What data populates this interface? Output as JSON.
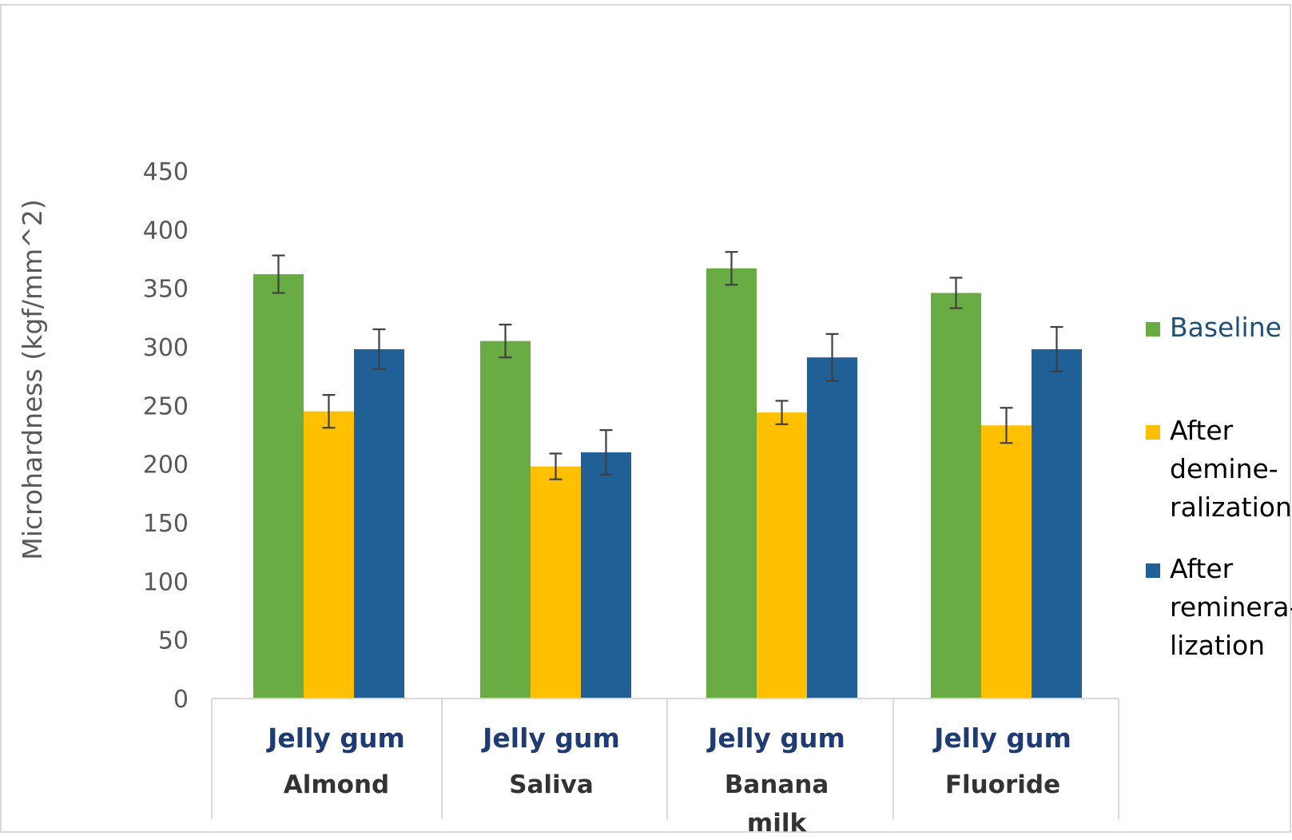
{
  "chart_data": {
    "type": "bar",
    "title": "",
    "xlabel": "",
    "ylabel": "Microhardness (kgf/mm^2)",
    "ylim": [
      0,
      450
    ],
    "yticks": [
      0,
      50,
      100,
      150,
      200,
      250,
      300,
      350,
      400,
      450
    ],
    "grid": false,
    "legend_position": "right",
    "categories": [
      {
        "group": "Jelly gum",
        "lines": [
          "Almond"
        ]
      },
      {
        "group": "Jelly gum",
        "lines": [
          "Saliva"
        ]
      },
      {
        "group": "Jelly gum",
        "lines": [
          "Banana",
          "milk"
        ]
      },
      {
        "group": "Jelly gum",
        "lines": [
          "Fluoride"
        ]
      }
    ],
    "series": [
      {
        "name": "Baseline",
        "legend_lines": [
          "Baseline"
        ],
        "color": "#6aac44",
        "values": [
          362,
          305,
          367,
          346
        ],
        "errors": [
          16,
          14,
          14,
          13
        ]
      },
      {
        "name": "After demineralization",
        "legend_lines": [
          "After",
          "demine-",
          "ralization"
        ],
        "color": "#fec000",
        "values": [
          245,
          198,
          244,
          233
        ],
        "errors": [
          14,
          11,
          10,
          15
        ]
      },
      {
        "name": "After remineralization",
        "legend_lines": [
          "After",
          "reminera-",
          "lization"
        ],
        "color": "#215f97",
        "values": [
          298,
          210,
          291,
          298
        ],
        "errors": [
          17,
          19,
          20,
          19
        ]
      }
    ],
    "colors": {
      "axis_text": "#595959",
      "category_group": "#1f3b73",
      "category_name": "#333333",
      "frame": "#d9d9d9"
    }
  }
}
